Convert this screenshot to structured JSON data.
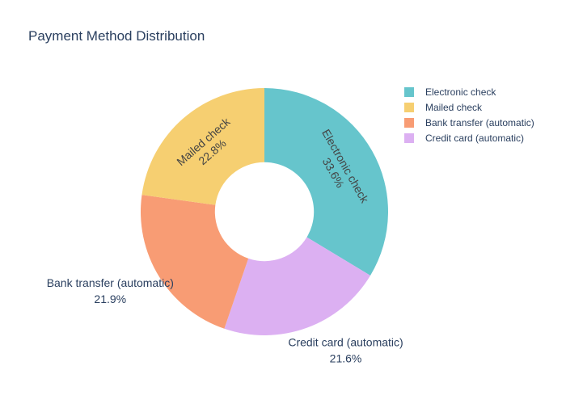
{
  "chart_data": {
    "type": "pie",
    "title": "Payment Method Distribution",
    "hole": 0.4,
    "legend_position": "top-right",
    "slices": [
      {
        "label": "Electronic check",
        "percent": 33.6,
        "percent_text": "33.6%",
        "color": "#66c5cc"
      },
      {
        "label": "Credit card (automatic)",
        "percent": 21.6,
        "percent_text": "21.6%",
        "color": "#dcb0f2"
      },
      {
        "label": "Bank transfer (automatic)",
        "percent": 21.9,
        "percent_text": "21.9%",
        "color": "#f89c74"
      },
      {
        "label": "Mailed check",
        "percent": 22.8,
        "percent_text": "22.8%",
        "color": "#f6cf71"
      }
    ],
    "legend": [
      {
        "label": "Electronic check",
        "color": "#66c5cc"
      },
      {
        "label": "Mailed check",
        "color": "#f6cf71"
      },
      {
        "label": "Bank transfer (automatic)",
        "color": "#f89c74"
      },
      {
        "label": "Credit card (automatic)",
        "color": "#dcb0f2"
      }
    ]
  }
}
